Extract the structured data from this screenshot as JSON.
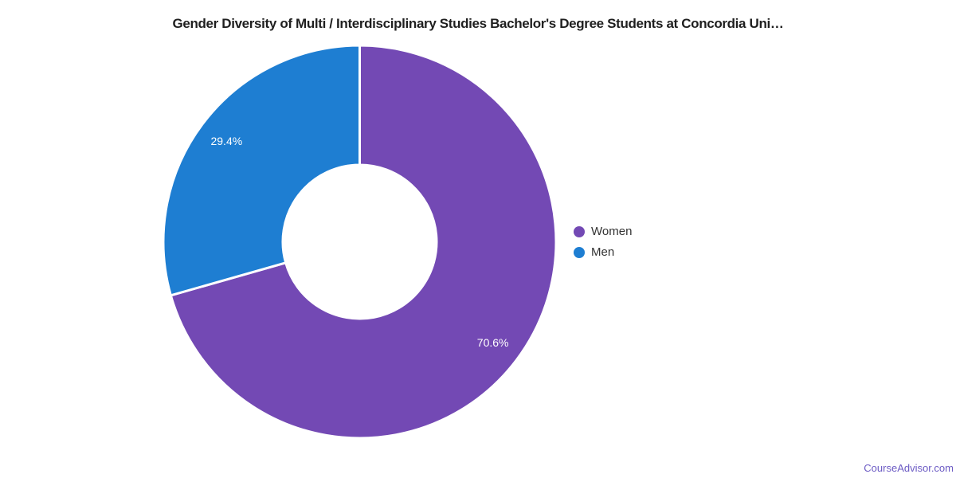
{
  "title": {
    "text": "Gender Diversity of Multi / Interdisciplinary Studies Bachelor's Degree Students at Concordia Uni…"
  },
  "watermark": {
    "text": "CourseAdvisor.com",
    "color": "#6C5BC4"
  },
  "chart_data": {
    "type": "pie",
    "donut": true,
    "title": "Gender Diversity of Multi / Interdisciplinary Studies Bachelor's Degree Students at Concordia Uni…",
    "start_angle_deg": 0,
    "direction": "clockwise",
    "inner_radius_ratio": 0.3915,
    "label_radius_ratio": 0.85,
    "slice_border_color": "#ffffff",
    "label_color": "#ffffff",
    "legend_position": "right",
    "background": "#ffffff",
    "series": [
      {
        "name": "Women",
        "value": 70.6,
        "label": "70.6%",
        "color": "#7349B4"
      },
      {
        "name": "Men",
        "value": 29.4,
        "label": "29.4%",
        "color": "#1E7ED2"
      }
    ]
  }
}
